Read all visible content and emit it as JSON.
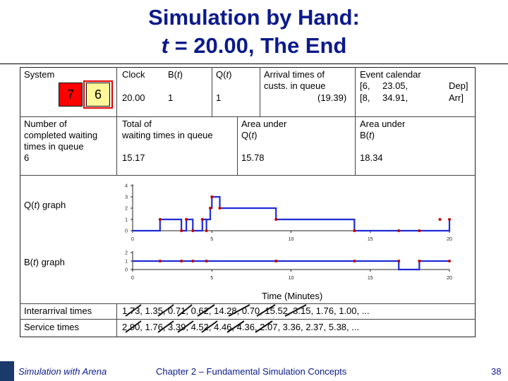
{
  "title": {
    "line1": "Simulation by Hand:",
    "t": "t",
    "line2_rest": " = 20.00, The End"
  },
  "system": {
    "label": "System",
    "queue_cust": "7",
    "server_cust": "6"
  },
  "clock": {
    "label": "Clock",
    "value": "20.00"
  },
  "bt": {
    "pre": "B(",
    "var": "t",
    "post": ")",
    "value": "1"
  },
  "qt": {
    "pre": "Q(",
    "var": "t",
    "post": ")",
    "value": "1"
  },
  "arrival": {
    "label1": "Arrival times of",
    "label2": "custs. in queue",
    "value": "(19.39)"
  },
  "event_calendar": {
    "label": "Event calendar",
    "row1": [
      "[6,",
      "23.05,",
      "Dep]"
    ],
    "row2": [
      "[8,",
      "34.91,",
      "Arr]"
    ]
  },
  "stats": {
    "completed": {
      "l1": "Number of",
      "l2": "completed waiting",
      "l3": "times in queue",
      "value": "6"
    },
    "total": {
      "l1": "Total of",
      "l2": "waiting times in queue",
      "value": "15.17"
    },
    "area_q": {
      "l1": "Area under",
      "l2": "Q(",
      "var": "t",
      "l3": ")",
      "value": "15.78"
    },
    "area_b": {
      "l1": "Area under",
      "l2": "B(",
      "var": "t",
      "l3": ")",
      "value": "18.34"
    }
  },
  "q_graph_label": {
    "pre": "Q(",
    "var": "t",
    "post": ") graph"
  },
  "b_graph_label": {
    "pre": "B(",
    "var": "t",
    "post": ") graph"
  },
  "x_axis_label": "Time (Minutes)",
  "interarrival": {
    "label": "Interarrival times",
    "values": "1.73, 1.35, 0.71, 0.62, 14.28, 0.70, 15.52, 3.15, 1.76, 1.00, ..."
  },
  "service": {
    "label": "Service times",
    "values": "2.90, 1.76, 3.39, 4.52, 4.46, 4.36, 2.07, 3.36, 2.37, 5.38, ..."
  },
  "chart_data": [
    {
      "type": "line",
      "name": "Q(t)",
      "x_ticks": [
        0,
        5,
        10,
        15,
        20
      ],
      "y_ticks": [
        0,
        1,
        2,
        3,
        4
      ],
      "xlim": [
        0,
        20
      ],
      "ylim": [
        0,
        4
      ],
      "steps": [
        [
          0,
          0
        ],
        [
          1.73,
          0
        ],
        [
          1.73,
          1
        ],
        [
          3.08,
          1
        ],
        [
          3.08,
          0
        ],
        [
          3.39,
          0
        ],
        [
          3.39,
          1
        ],
        [
          3.8,
          1
        ],
        [
          3.8,
          0
        ],
        [
          4.4,
          0
        ],
        [
          4.4,
          1
        ],
        [
          4.66,
          1
        ],
        [
          4.66,
          0
        ],
        [
          4.66,
          1
        ],
        [
          4.9,
          1
        ],
        [
          4.9,
          2
        ],
        [
          5.0,
          2
        ],
        [
          5.0,
          3
        ],
        [
          5.5,
          3
        ],
        [
          5.5,
          2
        ],
        [
          9.05,
          2
        ],
        [
          9.05,
          1
        ],
        [
          14.0,
          1
        ],
        [
          14.0,
          0
        ],
        [
          20,
          0
        ],
        [
          20,
          1
        ]
      ],
      "points": [
        [
          1.73,
          1
        ],
        [
          3.08,
          0
        ],
        [
          3.39,
          1
        ],
        [
          3.8,
          0
        ],
        [
          4.4,
          1
        ],
        [
          4.66,
          0
        ],
        [
          4.9,
          2
        ],
        [
          5.0,
          3
        ],
        [
          5.5,
          2
        ],
        [
          9.05,
          1
        ],
        [
          14.0,
          0
        ],
        [
          16.8,
          0
        ],
        [
          18.1,
          0
        ],
        [
          19.4,
          1
        ],
        [
          20,
          1
        ]
      ]
    },
    {
      "type": "line",
      "name": "B(t)",
      "x_ticks": [
        0,
        5,
        10,
        15,
        20
      ],
      "y_ticks": [
        0,
        1,
        2
      ],
      "xlim": [
        0,
        20
      ],
      "ylim": [
        0,
        2
      ],
      "steps": [
        [
          0,
          1
        ],
        [
          16.8,
          1
        ],
        [
          16.8,
          0
        ],
        [
          18.1,
          0
        ],
        [
          18.1,
          1
        ],
        [
          20,
          1
        ]
      ],
      "points": [
        [
          1.73,
          1
        ],
        [
          3.08,
          1
        ],
        [
          3.8,
          1
        ],
        [
          4.66,
          1
        ],
        [
          9.05,
          1
        ],
        [
          14.0,
          1
        ],
        [
          16.8,
          1
        ],
        [
          18.1,
          1
        ],
        [
          20,
          1
        ]
      ]
    }
  ],
  "footer": {
    "left": "Simulation with Arena",
    "center": "Chapter 2 – Fundamental Simulation Concepts",
    "page": "38"
  },
  "colors": {
    "title": "#0b1a8c",
    "line": "#1f2bd6",
    "point": "#c00000",
    "queue_box": "#ff0000",
    "server_box": "#fff799"
  }
}
